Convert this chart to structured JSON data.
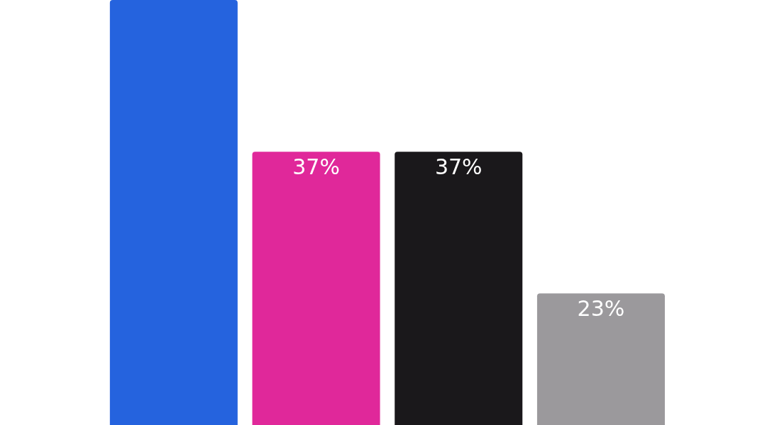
{
  "chart_data": {
    "type": "bar",
    "categories": [
      null,
      null,
      null,
      null
    ],
    "values": [
      52,
      37,
      37,
      23
    ],
    "colors": [
      "#2563de",
      "#e0289a",
      "#1a181b",
      "#9b999c"
    ],
    "value_labels": [
      null,
      "37%",
      "37%",
      "23%"
    ],
    "ylim": [
      10,
      52
    ],
    "tick_labels": false
  }
}
